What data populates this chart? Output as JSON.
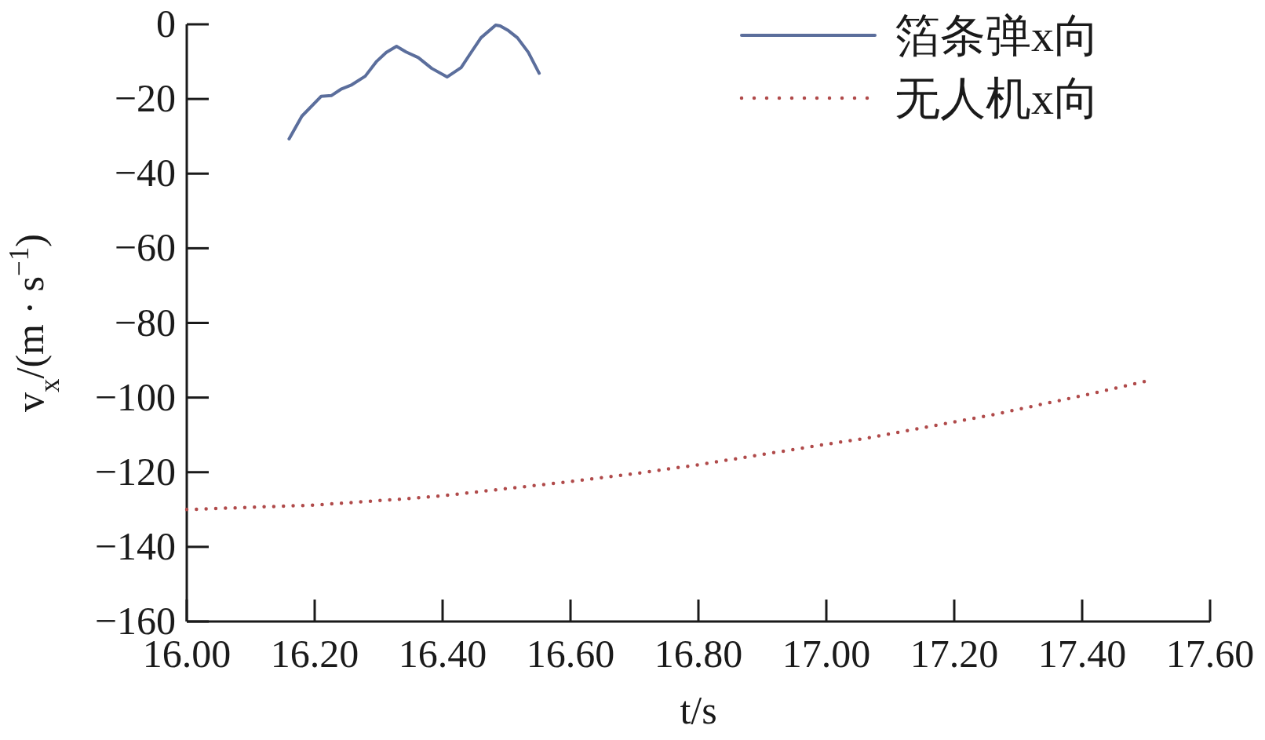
{
  "chart_data": {
    "type": "line",
    "xlabel": "t/s",
    "ylabel": "v$_{x}$/(m · s$^{−1}$)",
    "xlim": [
      16.0,
      17.6
    ],
    "ylim": [
      -160,
      0
    ],
    "xticks": [
      {
        "value": 16.0,
        "label": "16.00"
      },
      {
        "value": 16.2,
        "label": "16.20"
      },
      {
        "value": 16.4,
        "label": "16.40"
      },
      {
        "value": 16.6,
        "label": "16.60"
      },
      {
        "value": 16.8,
        "label": "16.80"
      },
      {
        "value": 17.0,
        "label": "17.00"
      },
      {
        "value": 17.2,
        "label": "17.20"
      },
      {
        "value": 17.4,
        "label": "17.40"
      },
      {
        "value": 17.6,
        "label": "17.60"
      }
    ],
    "yticks": [
      0,
      -20,
      -40,
      -60,
      -80,
      -100,
      -120,
      -140,
      -160
    ],
    "grid": false,
    "legend": "top right",
    "series": [
      {
        "name": "箔条弹x向",
        "color": "#5b6e9c",
        "line_style": "solid",
        "x": [
          16.16,
          16.18,
          16.21,
          16.226,
          16.242,
          16.258,
          16.279,
          16.297,
          16.312,
          16.328,
          16.343,
          16.362,
          16.383,
          16.407,
          16.429,
          16.442,
          16.46,
          16.483,
          16.49,
          16.503,
          16.517,
          16.534,
          16.551
        ],
        "values": [
          -30.7,
          -24.6,
          -19.3,
          -19.1,
          -17.3,
          -16.2,
          -13.9,
          -9.9,
          -7.5,
          -5.9,
          -7.4,
          -8.9,
          -11.8,
          -14.1,
          -11.6,
          -8.2,
          -3.6,
          -0.2,
          -0.4,
          -1.7,
          -3.6,
          -7.5,
          -13.1
        ]
      },
      {
        "name": "无人机x向",
        "color": "#b04a4a",
        "line_style": "dotted",
        "x": [
          16.0,
          16.2,
          16.352,
          16.4,
          16.6,
          16.704,
          16.8,
          17.0,
          17.066,
          17.2,
          17.263,
          17.4,
          17.497
        ],
        "values": [
          -130.0,
          -128.8,
          -127.0,
          -126.3,
          -122.5,
          -120.3,
          -118.0,
          -112.5,
          -110.8,
          -106.5,
          -104.5,
          -99.5,
          -95.7
        ]
      }
    ]
  }
}
